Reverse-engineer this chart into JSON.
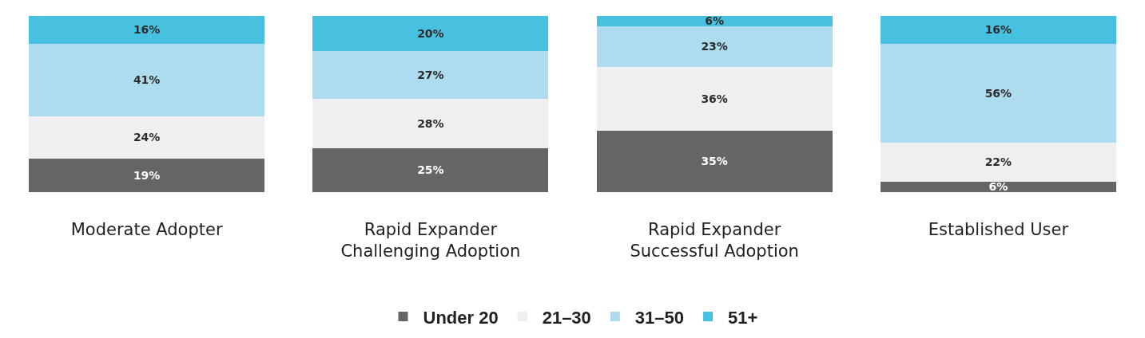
{
  "chart_data": {
    "type": "bar",
    "stacked": true,
    "categories": [
      "Moderate Adopter",
      "Rapid Expander\nChallenging Adoption",
      "Rapid Expander\nSuccessful Adoption",
      "Established User"
    ],
    "series": [
      {
        "name": "Under 20",
        "color": "#646567",
        "values": [
          19,
          25,
          35,
          6
        ],
        "value_labels": [
          "19%",
          "25%",
          "35%",
          "6%"
        ]
      },
      {
        "name": "21–30",
        "color": "#efeef1",
        "values": [
          24,
          28,
          36,
          22
        ],
        "value_labels": [
          "24%",
          "28%",
          "36%",
          "22%"
        ]
      },
      {
        "name": "31–50",
        "color": "#acdcee",
        "values": [
          41,
          27,
          23,
          56
        ],
        "value_labels": [
          "41%",
          "27%",
          "23%",
          "56%"
        ]
      },
      {
        "name": "51+",
        "color": "#48c0e0",
        "values": [
          16,
          20,
          6,
          16
        ],
        "value_labels": [
          "16%",
          "20%",
          "6%",
          "16%"
        ]
      }
    ],
    "legend": "bottom",
    "grid": false
  }
}
